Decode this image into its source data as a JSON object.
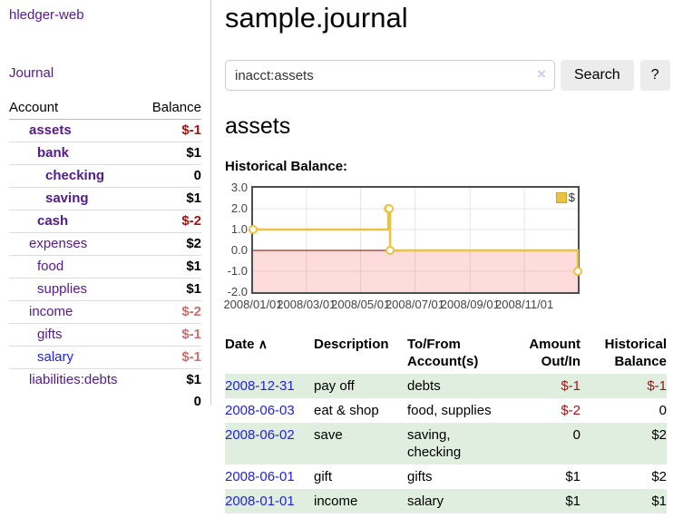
{
  "app": {
    "brand": "hledger-web"
  },
  "sidebar": {
    "nav_journal": "Journal",
    "accounts_table": {
      "headers": {
        "account": "Account",
        "balance": "Balance"
      },
      "rows": [
        {
          "name": "assets",
          "depth": 1,
          "balance": "$-1",
          "negative": true,
          "bold": true
        },
        {
          "name": "bank",
          "depth": 2,
          "balance": "$1",
          "negative": false,
          "bold": true
        },
        {
          "name": "checking",
          "depth": 3,
          "balance": "0",
          "negative": false,
          "bold": true
        },
        {
          "name": "saving",
          "depth": 3,
          "balance": "$1",
          "negative": false,
          "bold": true
        },
        {
          "name": "cash",
          "depth": 2,
          "balance": "$-2",
          "negative": true,
          "bold": true
        },
        {
          "name": "expenses",
          "depth": 1,
          "balance": "$2",
          "negative": false,
          "bold": false
        },
        {
          "name": "food",
          "depth": 2,
          "balance": "$1",
          "negative": false,
          "bold": false
        },
        {
          "name": "supplies",
          "depth": 2,
          "balance": "$1",
          "negative": false,
          "bold": false
        },
        {
          "name": "income",
          "depth": 1,
          "balance": "$-2",
          "negative": true,
          "bold": false
        },
        {
          "name": "gifts",
          "depth": 2,
          "balance": "$-1",
          "negative": true,
          "bold": false
        },
        {
          "name": "salary",
          "depth": 2,
          "balance": "$-1",
          "negative": true,
          "bold": false,
          "link_style": "unvisited"
        },
        {
          "name": "liabilities:debts",
          "depth": 1,
          "balance": "$1",
          "negative": false,
          "bold": false
        }
      ],
      "total": "0"
    }
  },
  "main": {
    "title": "sample.journal",
    "search": {
      "value": "inacct:assets",
      "clear_icon": "×",
      "search_label": "Search",
      "help_label": "?"
    },
    "account_heading": "assets",
    "chart_heading": "Historical Balance:"
  },
  "chart_data": {
    "type": "line",
    "style": "step-after",
    "title": "Historical Balance:",
    "series": [
      {
        "name": "$",
        "color": "#edc240",
        "points": [
          [
            "2008-01-01",
            1
          ],
          [
            "2008-06-01",
            2
          ],
          [
            "2008-06-02",
            2
          ],
          [
            "2008-06-03",
            0
          ],
          [
            "2008-12-31",
            -1
          ]
        ]
      }
    ],
    "xlim": [
      "2008-01-01",
      "2008-12-31"
    ],
    "ylim": [
      -2,
      3
    ],
    "x_ticks": [
      "2008/01/01",
      "2008/03/01",
      "2008/05/01",
      "2008/07/01",
      "2008/09/01",
      "2008/11/01"
    ],
    "y_ticks": [
      "3.0",
      "2.0",
      "1.0",
      "0.0",
      "-1.0",
      "-2.0"
    ],
    "grid": true,
    "legend_position": "top-right",
    "zero_line_color": "#8b0000",
    "negative_region_color": "rgba(255,70,70,0.19)",
    "gridline_color": "#e6e6e6"
  },
  "register": {
    "headers": {
      "date": "Date",
      "description": "Description",
      "account": "To/From Account(s)",
      "amount": "Amount Out/In",
      "balance": "Historical Balance"
    },
    "sort_icon": "∧",
    "rows": [
      {
        "date": "2008-12-31",
        "description": "pay off",
        "accounts": "debts",
        "amount": "$-1",
        "balance": "$-1"
      },
      {
        "date": "2008-06-03",
        "description": "eat & shop",
        "accounts": "food, supplies",
        "amount": "$-2",
        "balance": "0"
      },
      {
        "date": "2008-06-02",
        "description": "save",
        "accounts": "saving, checking",
        "amount": "0",
        "balance": "$2"
      },
      {
        "date": "2008-06-01",
        "description": "gift",
        "accounts": "gifts",
        "amount": "$1",
        "balance": "$2"
      },
      {
        "date": "2008-01-01",
        "description": "income",
        "accounts": "salary",
        "amount": "$1",
        "balance": "$1"
      }
    ]
  }
}
